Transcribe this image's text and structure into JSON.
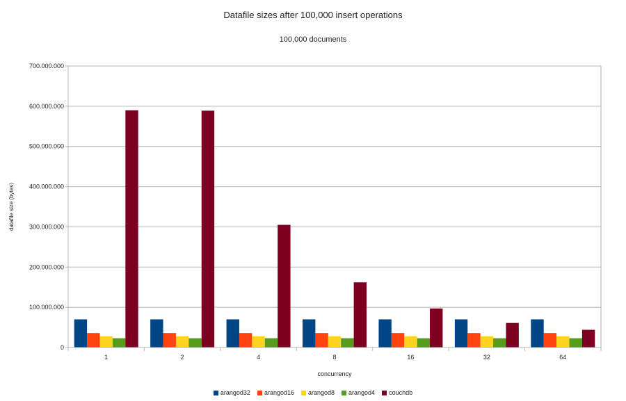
{
  "chart_data": {
    "type": "bar",
    "title": "Datafile sizes after 100,000 insert operations",
    "subtitle": "100,000 documents",
    "xlabel": "concurrency",
    "ylabel": "datafile size (bytes)",
    "ylim": [
      0,
      700000000
    ],
    "yticks": [
      0,
      100000000,
      200000000,
      300000000,
      400000000,
      500000000,
      600000000,
      700000000
    ],
    "ytick_labels": [
      "0",
      "100.000.000",
      "200.000.000",
      "300.000.000",
      "400.000.000",
      "500.000.000",
      "600.000.000",
      "700.000.000"
    ],
    "grid": true,
    "legend_position": "bottom",
    "categories": [
      "1",
      "2",
      "4",
      "8",
      "16",
      "32",
      "64"
    ],
    "series": [
      {
        "name": "arangod32",
        "color": "#004586",
        "values": [
          70000000,
          70000000,
          70000000,
          70000000,
          70000000,
          70000000,
          70000000
        ]
      },
      {
        "name": "arangod16",
        "color": "#ff420e",
        "values": [
          36000000,
          36000000,
          36000000,
          36000000,
          36000000,
          36000000,
          36000000
        ]
      },
      {
        "name": "arangod8",
        "color": "#ffd320",
        "values": [
          28000000,
          28000000,
          28000000,
          28000000,
          28000000,
          28000000,
          28000000
        ]
      },
      {
        "name": "arangod4",
        "color": "#579d1c",
        "values": [
          23000000,
          23000000,
          23000000,
          23000000,
          23000000,
          23000000,
          23000000
        ]
      },
      {
        "name": "couchdb",
        "color": "#7e0021",
        "values": [
          590000000,
          589000000,
          305000000,
          162000000,
          97000000,
          61000000,
          44000000
        ]
      }
    ]
  }
}
